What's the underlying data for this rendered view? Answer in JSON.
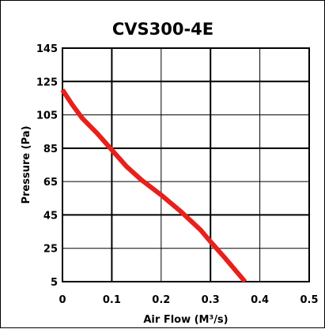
{
  "chart_data": {
    "type": "line",
    "title": "CVS300-4E",
    "xlabel": "Air Flow (M³/s)",
    "ylabel": "Pressure (Pa)",
    "xlim": [
      0,
      0.5
    ],
    "ylim": [
      5,
      145
    ],
    "x_ticks": [
      0,
      0.1,
      0.2,
      0.3,
      0.4,
      0.5
    ],
    "x_tick_labels": [
      "0",
      "0.1",
      "0.2",
      "0.3",
      "0.4",
      "0.5"
    ],
    "y_ticks": [
      5,
      25,
      45,
      65,
      85,
      105,
      125,
      145
    ],
    "y_tick_labels": [
      "5",
      "25",
      "45",
      "65",
      "85",
      "105",
      "125",
      "145"
    ],
    "grid": true,
    "series": [
      {
        "color": "#e8201c",
        "x": [
          0,
          0.02,
          0.04,
          0.07,
          0.1,
          0.13,
          0.16,
          0.2,
          0.24,
          0.28,
          0.3,
          0.33,
          0.37
        ],
        "y": [
          120,
          111,
          103,
          94,
          84,
          74,
          66,
          57,
          47,
          36,
          29,
          19,
          5
        ]
      }
    ]
  }
}
